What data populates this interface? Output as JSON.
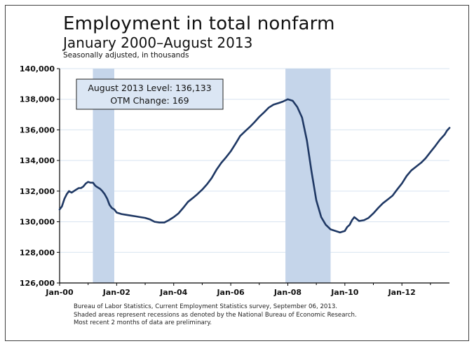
{
  "title": "Employment in total nonfarm",
  "subtitle": "January 2000–August 2013",
  "note": "Seasonally adjusted, in thousands",
  "callout": {
    "level": "August 2013 Level: 136,133",
    "change": "OTM Change: 169"
  },
  "footer": {
    "line1": "Bureau of Labor Statistics, Current Employment Statistics survey, September 06, 2013.",
    "line2": "Shaded areas represent recessions as denoted by the National Bureau of Economic Research.",
    "line3": "Most recent 2 months of data are preliminary."
  },
  "colors": {
    "line": "#1f3864",
    "recession": "#c5d5ea",
    "grid": "#d7e3f0",
    "callout_bg": "#dbe6f4"
  },
  "chart_data": {
    "type": "line",
    "title": "Employment in total nonfarm",
    "ylabel": "Seasonally adjusted, in thousands",
    "xlabel": "",
    "xlim": [
      2000.0,
      2013.6667
    ],
    "ylim": [
      126000,
      140000
    ],
    "y_ticks": [
      126000,
      128000,
      130000,
      132000,
      134000,
      136000,
      138000,
      140000
    ],
    "y_tick_labels": [
      "126,000",
      "128,000",
      "130,000",
      "132,000",
      "134,000",
      "136,000",
      "138,000",
      "140,000"
    ],
    "x_ticks": [
      2000,
      2002,
      2004,
      2006,
      2008,
      2010,
      2012
    ],
    "x_tick_labels": [
      "Jan-00",
      "Jan-02",
      "Jan-04",
      "Jan-06",
      "Jan-08",
      "Jan-10",
      "Jan-12"
    ],
    "grid": true,
    "recessions": [
      {
        "start": 2001.1667,
        "end": 2001.9167
      },
      {
        "start": 2007.9167,
        "end": 2009.5
      }
    ],
    "series": [
      {
        "name": "Total nonfarm employment",
        "x": [
          2000.0,
          2000.08,
          2000.17,
          2000.25,
          2000.33,
          2000.42,
          2000.5,
          2000.58,
          2000.67,
          2000.75,
          2000.83,
          2000.92,
          2001.0,
          2001.08,
          2001.17,
          2001.25,
          2001.33,
          2001.42,
          2001.5,
          2001.58,
          2001.67,
          2001.75,
          2001.83,
          2001.92,
          2002.0,
          2002.17,
          2002.33,
          2002.5,
          2002.67,
          2002.83,
          2003.0,
          2003.17,
          2003.33,
          2003.5,
          2003.67,
          2003.83,
          2004.0,
          2004.17,
          2004.33,
          2004.5,
          2004.67,
          2004.83,
          2005.0,
          2005.17,
          2005.33,
          2005.5,
          2005.67,
          2005.83,
          2006.0,
          2006.17,
          2006.33,
          2006.5,
          2006.67,
          2006.83,
          2007.0,
          2007.17,
          2007.33,
          2007.5,
          2007.67,
          2007.83,
          2008.0,
          2008.17,
          2008.33,
          2008.5,
          2008.67,
          2008.83,
          2009.0,
          2009.17,
          2009.33,
          2009.5,
          2009.67,
          2009.83,
          2010.0,
          2010.08,
          2010.17,
          2010.25,
          2010.33,
          2010.5,
          2010.67,
          2010.83,
          2011.0,
          2011.17,
          2011.33,
          2011.5,
          2011.67,
          2011.83,
          2012.0,
          2012.17,
          2012.33,
          2012.5,
          2012.67,
          2012.83,
          2013.0,
          2013.17,
          2013.33,
          2013.5,
          2013.58,
          2013.67
        ],
        "values": [
          130800,
          131000,
          131500,
          131800,
          132000,
          131900,
          132000,
          132100,
          132200,
          132200,
          132300,
          132500,
          132600,
          132550,
          132550,
          132350,
          132250,
          132150,
          132000,
          131800,
          131500,
          131100,
          130900,
          130800,
          130600,
          130500,
          130450,
          130400,
          130350,
          130300,
          130250,
          130150,
          130000,
          129950,
          129950,
          130100,
          130300,
          130550,
          130900,
          131300,
          131550,
          131800,
          132100,
          132450,
          132850,
          133400,
          133850,
          134200,
          134600,
          135100,
          135600,
          135900,
          136200,
          136500,
          136850,
          137150,
          137450,
          137650,
          137750,
          137850,
          138000,
          137900,
          137500,
          136800,
          135300,
          133300,
          131400,
          130300,
          129800,
          129500,
          129400,
          129300,
          129400,
          129650,
          129800,
          130100,
          130300,
          130050,
          130100,
          130250,
          130550,
          130900,
          131200,
          131450,
          131700,
          132100,
          132500,
          133000,
          133350,
          133600,
          133850,
          134150,
          134550,
          134950,
          135350,
          135700,
          135950,
          136133
        ]
      }
    ]
  }
}
